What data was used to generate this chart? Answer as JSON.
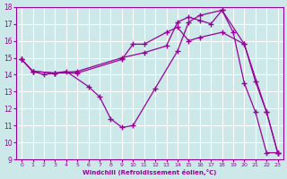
{
  "xlabel": "Windchill (Refroidissement éolien,°C)",
  "background_color": "#cce8e8",
  "line_color": "#990099",
  "grid_color": "#ffffff",
  "xlim": [
    -0.5,
    23.5
  ],
  "ylim": [
    9,
    18
  ],
  "xticks": [
    0,
    1,
    2,
    3,
    4,
    5,
    6,
    7,
    8,
    9,
    10,
    11,
    12,
    13,
    14,
    15,
    16,
    17,
    18,
    19,
    20,
    21,
    22,
    23
  ],
  "yticks": [
    9,
    10,
    11,
    12,
    13,
    14,
    15,
    16,
    17,
    18
  ],
  "line1_x": [
    0,
    1,
    3,
    5,
    9,
    10,
    11,
    13,
    14,
    15,
    16,
    18,
    20,
    21,
    22,
    23
  ],
  "line1_y": [
    14.9,
    14.2,
    14.1,
    14.1,
    14.9,
    15.8,
    15.8,
    16.5,
    16.8,
    16.0,
    16.2,
    16.5,
    15.8,
    13.6,
    11.8,
    9.4
  ],
  "line2_x": [
    0,
    1,
    3,
    5,
    9,
    11,
    13,
    14,
    15,
    16,
    17,
    18,
    20,
    22,
    23
  ],
  "line2_y": [
    14.9,
    14.2,
    14.1,
    14.2,
    15.0,
    15.3,
    15.7,
    17.1,
    17.4,
    17.2,
    17.0,
    17.8,
    15.8,
    11.8,
    9.4
  ],
  "line3_x": [
    0,
    1,
    2,
    3,
    4,
    6,
    7,
    8,
    9,
    10,
    12,
    14,
    15,
    16,
    18,
    19,
    20,
    21,
    22,
    23
  ],
  "line3_y": [
    14.9,
    14.2,
    14.0,
    14.1,
    14.2,
    13.3,
    12.7,
    11.4,
    10.9,
    11.0,
    13.2,
    15.4,
    17.1,
    17.5,
    17.8,
    16.5,
    13.5,
    11.8,
    9.4,
    9.4
  ]
}
